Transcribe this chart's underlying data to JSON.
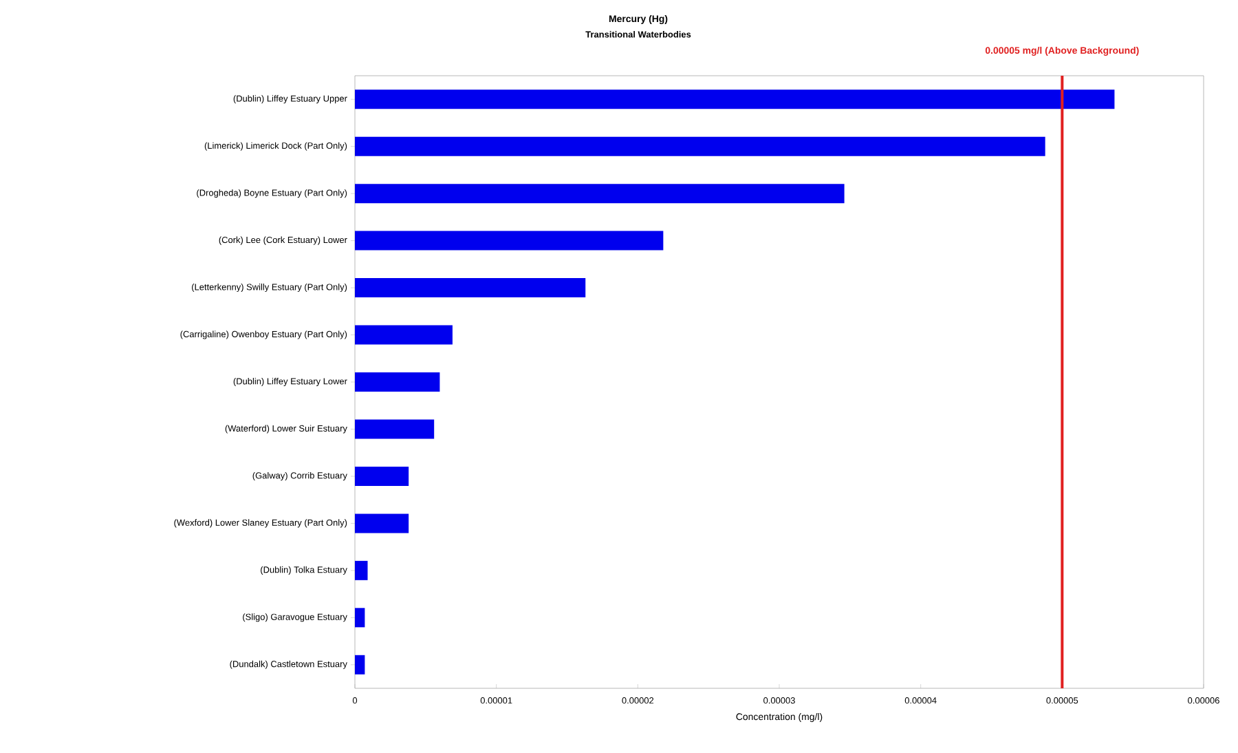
{
  "chart_data": {
    "type": "bar",
    "orientation": "horizontal",
    "title": "Mercury (Hg)",
    "subtitle": "Transitional Waterbodies",
    "xlabel": "Concentration (mg/l)",
    "categories": [
      "(Dublin) Liffey Estuary Upper",
      "(Limerick) Limerick Dock (Part Only)",
      "(Drogheda) Boyne Estuary (Part Only)",
      "(Cork) Lee (Cork Estuary) Lower",
      "(Letterkenny) Swilly Estuary (Part Only)",
      "(Carrigaline) Owenboy Estuary (Part Only)",
      "(Dublin) Liffey Estuary Lower",
      "(Waterford) Lower Suir Estuary",
      "(Galway) Corrib Estuary",
      "(Wexford) Lower Slaney Estuary (Part Only)",
      "(Dublin) Tolka Estuary",
      "(Sligo) Garavogue Estuary",
      "(Dundalk) Castletown Estuary"
    ],
    "values": [
      5.37e-05,
      4.88e-05,
      3.46e-05,
      2.18e-05,
      1.63e-05,
      6.9e-06,
      6e-06,
      5.6e-06,
      3.8e-06,
      3.8e-06,
      9e-07,
      7e-07,
      7e-07
    ],
    "color": "#0000ee",
    "xlim": [
      0,
      6e-05
    ],
    "xticks": [
      0,
      {
        "value": 1e-05,
        "label": "0.00001"
      },
      {
        "value": 2e-05,
        "label": "0.00002"
      },
      {
        "value": 3e-05,
        "label": "0.00003"
      },
      {
        "value": 4e-05,
        "label": "0.00004"
      },
      {
        "value": 5e-05,
        "label": "0.00005"
      },
      {
        "value": 6e-05,
        "label": "0.00006"
      }
    ],
    "ref_lines": [
      {
        "axis": "x",
        "value": 5e-05,
        "label": "0.00005 mg/l (Above Background)",
        "color": "#e02020"
      }
    ]
  }
}
